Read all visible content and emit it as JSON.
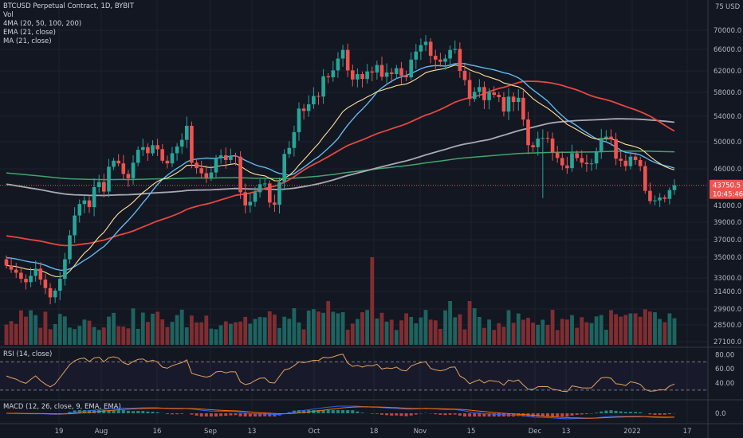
{
  "chart_data": {
    "type": "candlestick",
    "symbol": "BTCUSD Perpetual Contract, 1D, BYBIT",
    "currency": "USD",
    "legend": [
      "Vol",
      "4MA (20, 50, 100, 200)",
      "EMA (21, close)",
      "MA (21, close)"
    ],
    "price_axis_ticks": [
      27100,
      28500,
      29900,
      31400,
      33000,
      35000,
      37000,
      39000,
      41000,
      43750.5,
      46000,
      50000,
      54000,
      58000,
      62000,
      66000,
      70000,
      75000
    ],
    "price_axis_labels": [
      "27100.0",
      "28500.0",
      "29900.0",
      "31400.0",
      "33000.0",
      "35000.0",
      "37000.0",
      "39000.0",
      "41000.0",
      "46000.0",
      "50000.0",
      "54000.0",
      "58000.0",
      "62000.0",
      "66000.0",
      "70000.0"
    ],
    "price_axis_unit": "USD",
    "price_axis_top_partial": "75",
    "last_price_label": "43750.5",
    "countdown_label": "10:45:46",
    "x_axis_labels": [
      "19",
      "Aug",
      "16",
      "Sep",
      "13",
      "Oct",
      "18",
      "Nov",
      "15",
      "Dec",
      "13",
      "2022",
      "17"
    ],
    "closes": [
      34200,
      33800,
      33500,
      32900,
      32500,
      33200,
      33900,
      32800,
      31800,
      30900,
      31500,
      32900,
      34800,
      37500,
      39800,
      41200,
      41700,
      40800,
      43500,
      44200,
      42900,
      46300,
      47200,
      46800,
      45300,
      44700,
      46900,
      48800,
      49200,
      48300,
      49500,
      48900,
      47200,
      46800,
      48300,
      49300,
      50300,
      52500,
      46900,
      46100,
      45400,
      44800,
      45500,
      47600,
      48000,
      47300,
      47900,
      47800,
      42800,
      41000,
      41500,
      42800,
      43900,
      44000,
      41400,
      41100,
      44200,
      48200,
      49100,
      51500,
      55300,
      54900,
      56000,
      57400,
      57300,
      61000,
      60800,
      62100,
      64300,
      65900,
      62100,
      60400,
      61400,
      60500,
      61900,
      61700,
      63100,
      60900,
      61700,
      61400,
      62500,
      61100,
      60800,
      64100,
      65600,
      66900,
      67600,
      64800,
      64100,
      63700,
      64300,
      65900,
      66100,
      62000,
      60300,
      56900,
      58100,
      59000,
      56700,
      58000,
      57600,
      57200,
      54800,
      57300,
      56400,
      57100,
      53500,
      49500,
      49200,
      50500,
      50600,
      50500,
      48400,
      47600,
      46500,
      46100,
      48300,
      47600,
      46900,
      46700,
      46800,
      48600,
      50600,
      50800,
      50400,
      47500,
      47200,
      46400,
      47800,
      47300,
      46400,
      43000,
      41600,
      41700,
      42100,
      41900,
      43100,
      43750
    ],
    "rsi": {
      "label": "RSI (14, close)",
      "ticks": [
        "80.00",
        "60.00",
        "40.00"
      ],
      "upper": 70,
      "lower": 30,
      "upper_band_label": "",
      "lower_band_label": ""
    },
    "macd": {
      "label": "MACD (12, 26, close, 9, EMA, EMA)",
      "ticks": [
        "0.0"
      ]
    },
    "series_colors": {
      "up": "#26a69a",
      "down": "#ef5350",
      "ema21": "#ffe29a",
      "ma21": "#5fb9f0",
      "ma50": "#e5473f",
      "ma100": "#a9a9b3",
      "ma200": "#3fa56b"
    }
  }
}
